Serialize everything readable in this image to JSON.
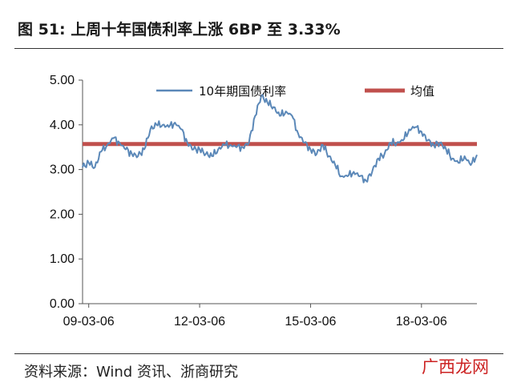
{
  "header": {
    "title": "图 51: 上周十年国债利率上涨 6BP 至 3.33%"
  },
  "footer": {
    "source": "资料来源：Wind 资讯、浙商研究",
    "watermark": "广西龙网"
  },
  "chart_data": {
    "type": "line",
    "title": "",
    "xlabel": "",
    "ylabel": "",
    "ylim": [
      0,
      5
    ],
    "yticks": [
      "0.00",
      "1.00",
      "2.00",
      "3.00",
      "4.00",
      "5.00"
    ],
    "x_start": "2009-01",
    "x_end": "2019-09",
    "xticks": [
      "09-03-06",
      "12-03-06",
      "15-03-06",
      "18-03-06"
    ],
    "xtick_dates": [
      "2009-03",
      "2012-03",
      "2015-03",
      "2018-03"
    ],
    "legend_position": "top",
    "grid": false,
    "series": [
      {
        "name": "10年期国债利率",
        "color": "#5b88b8",
        "x": [
          "2009-01",
          "2009-03",
          "2009-05",
          "2009-07",
          "2009-09",
          "2009-11",
          "2010-01",
          "2010-03",
          "2010-05",
          "2010-07",
          "2010-09",
          "2010-11",
          "2011-01",
          "2011-03",
          "2011-05",
          "2011-07",
          "2011-09",
          "2011-11",
          "2012-01",
          "2012-03",
          "2012-05",
          "2012-07",
          "2012-09",
          "2012-11",
          "2013-01",
          "2013-03",
          "2013-05",
          "2013-07",
          "2013-09",
          "2013-11",
          "2014-01",
          "2014-03",
          "2014-05",
          "2014-07",
          "2014-09",
          "2014-11",
          "2015-01",
          "2015-03",
          "2015-05",
          "2015-07",
          "2015-09",
          "2015-11",
          "2016-01",
          "2016-03",
          "2016-05",
          "2016-07",
          "2016-09",
          "2016-11",
          "2017-01",
          "2017-03",
          "2017-05",
          "2017-07",
          "2017-09",
          "2017-11",
          "2018-01",
          "2018-03",
          "2018-05",
          "2018-07",
          "2018-09",
          "2018-11",
          "2019-01",
          "2019-03",
          "2019-05",
          "2019-07",
          "2019-09"
        ],
        "values": [
          3.05,
          3.15,
          3.05,
          3.4,
          3.55,
          3.7,
          3.6,
          3.45,
          3.35,
          3.3,
          3.45,
          3.9,
          4.0,
          4.0,
          3.95,
          4.05,
          3.9,
          3.6,
          3.45,
          3.45,
          3.35,
          3.3,
          3.45,
          3.55,
          3.55,
          3.5,
          3.5,
          3.6,
          4.2,
          4.65,
          4.5,
          4.4,
          4.2,
          4.3,
          4.2,
          3.8,
          3.6,
          3.45,
          3.35,
          3.55,
          3.3,
          3.1,
          2.85,
          2.85,
          2.95,
          2.85,
          2.75,
          2.95,
          3.25,
          3.35,
          3.6,
          3.6,
          3.65,
          3.9,
          3.95,
          3.85,
          3.65,
          3.55,
          3.6,
          3.45,
          3.25,
          3.15,
          3.3,
          3.1,
          3.33
        ]
      },
      {
        "name": "均值",
        "color": "#c0504d",
        "x": [
          "2009-01",
          "2019-09"
        ],
        "values": [
          3.57,
          3.57
        ]
      }
    ]
  }
}
